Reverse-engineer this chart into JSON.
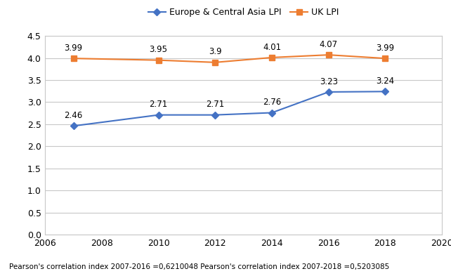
{
  "years": [
    2007,
    2010,
    2012,
    2014,
    2016,
    2018
  ],
  "europe_values": [
    2.46,
    2.71,
    2.71,
    2.76,
    3.23,
    3.24
  ],
  "uk_values": [
    3.99,
    3.95,
    3.9,
    4.01,
    4.07,
    3.99
  ],
  "europe_label": "Europe & Central Asia LPI",
  "uk_label": "UK LPI",
  "europe_color": "#4472C4",
  "uk_color": "#ED7D31",
  "xlim": [
    2006,
    2020
  ],
  "ylim": [
    0,
    4.5
  ],
  "yticks": [
    0,
    0.5,
    1.0,
    1.5,
    2.0,
    2.5,
    3.0,
    3.5,
    4.0,
    4.5
  ],
  "xticks": [
    2006,
    2008,
    2010,
    2012,
    2014,
    2016,
    2018,
    2020
  ],
  "footnote": "Pearson's correlation index 2007-2016 =0,6210048 Pearson's correlation index 2007-2018 =0,5203085",
  "background_color": "#ffffff",
  "grid_color": "#c8c8c8",
  "spine_color": "#c8c8c8",
  "label_fontsize": 8.5,
  "tick_fontsize": 9,
  "legend_fontsize": 9
}
